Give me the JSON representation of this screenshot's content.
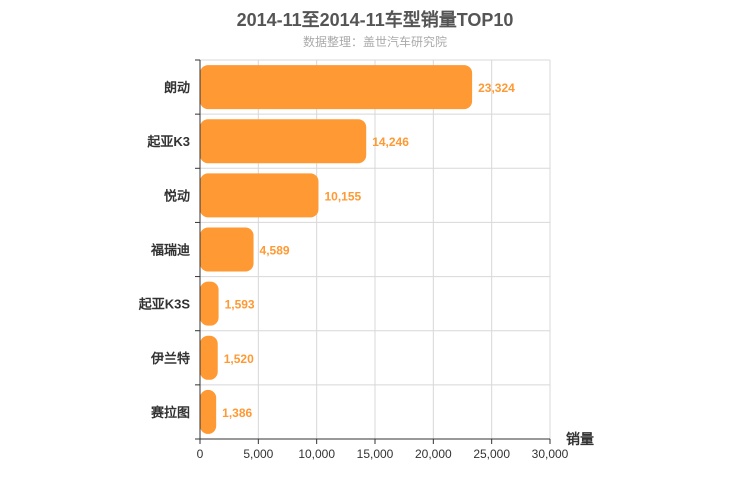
{
  "chart_data": {
    "type": "bar",
    "orientation": "horizontal",
    "title": "2014-11至2014-11车型销量TOP10",
    "subtitle": "数据整理：盖世汽车研究院",
    "categories": [
      "朗动",
      "起亚K3",
      "悦动",
      "福瑞迪",
      "起亚K3S",
      "伊兰特",
      "赛拉图"
    ],
    "values": [
      23324,
      14246,
      10155,
      4589,
      1593,
      1520,
      1386
    ],
    "value_labels": [
      "23,324",
      "14,246",
      "10,155",
      "4,589",
      "1,593",
      "1,520",
      "1,386"
    ],
    "xlabel": "销量",
    "ylabel": "",
    "xlim": [
      0,
      30000
    ],
    "ticks": [
      0,
      5000,
      10000,
      15000,
      20000,
      25000,
      30000
    ],
    "tick_labels": [
      "0",
      "5,000",
      "10,000",
      "15,000",
      "20,000",
      "25,000",
      "30,000"
    ],
    "grid": true,
    "bar_color": "#ff9933",
    "label_color": "#ff9933"
  }
}
